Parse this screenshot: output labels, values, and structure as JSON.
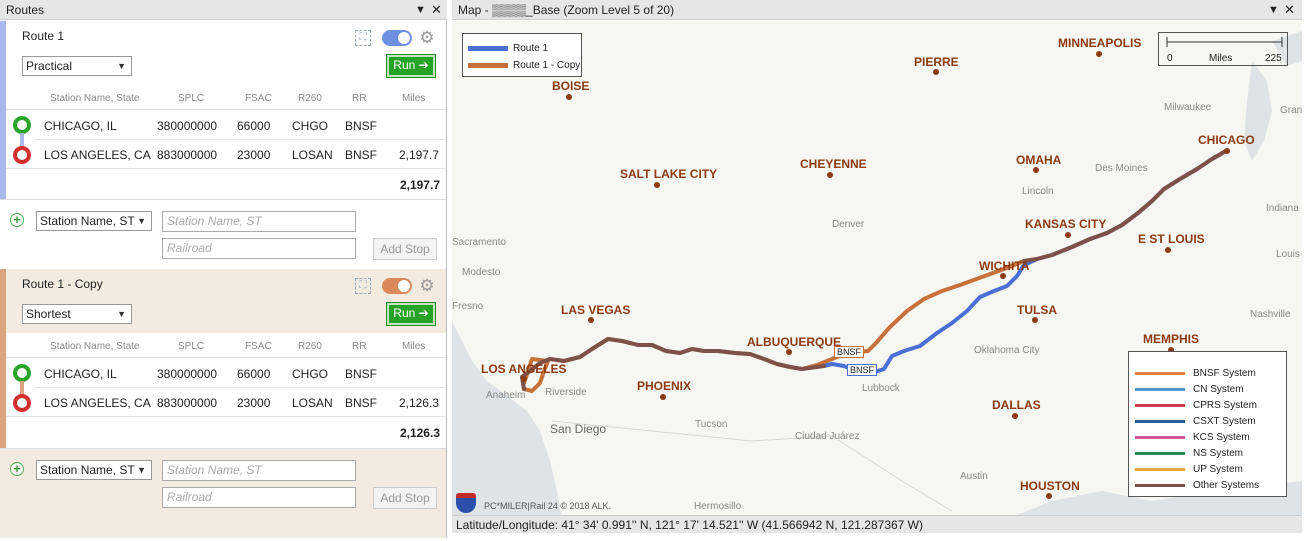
{
  "routes_pane": {
    "title": "Routes",
    "pin": "▼",
    "close": "✕"
  },
  "map_pane": {
    "title": "Map - ▒▒▒▒_Base (Zoom Level 5 of 20)",
    "pin": "▼",
    "close": "✕"
  },
  "columns": [
    "Station Name, State",
    "SPLC",
    "FSAC",
    "R260",
    "RR",
    "Miles"
  ],
  "colors": {
    "route1": "#4a6fd6",
    "route2": "#c8703a",
    "run": "#27a327"
  },
  "route1": {
    "name": "Route 1",
    "type": "Practical",
    "run": "Run ➔",
    "stops": [
      {
        "station": "CHICAGO, IL",
        "splc": "380000000",
        "fsac": "66000",
        "r260": "CHGO",
        "rr": "BNSF",
        "miles": ""
      },
      {
        "station": "LOS ANGELES, CA",
        "splc": "883000000",
        "fsac": "23000",
        "r260": "LOSAN",
        "rr": "BNSF",
        "miles": "2,197.7"
      }
    ],
    "total": "2,197.7"
  },
  "route2": {
    "name": "Route 1 - Copy",
    "type": "Shortest",
    "run": "Run ➔",
    "stops": [
      {
        "station": "CHICAGO, IL",
        "splc": "380000000",
        "fsac": "66000",
        "r260": "CHGO",
        "rr": "BNSF",
        "miles": ""
      },
      {
        "station": "LOS ANGELES, CA",
        "splc": "883000000",
        "fsac": "23000",
        "r260": "LOSAN",
        "rr": "BNSF",
        "miles": "2,126.3"
      }
    ],
    "total": "2,126.3"
  },
  "add_stop": {
    "type": "Station Name, ST",
    "station_placeholder": "Station Name, ST",
    "railroad_placeholder": "Railroad",
    "button": "Add Stop"
  },
  "map": {
    "route_legend": [
      "Route 1",
      "Route 1 - Copy"
    ],
    "scale": {
      "start": "0",
      "unit": "Miles",
      "end": "225"
    },
    "major_cities": [
      {
        "key": "minneapolis",
        "label": "MINNEAPOLIS"
      },
      {
        "key": "pierre",
        "label": "PIERRE"
      },
      {
        "key": "boise",
        "label": "BOISE"
      },
      {
        "key": "chicago",
        "label": "CHICAGO"
      },
      {
        "key": "omaha",
        "label": "OMAHA"
      },
      {
        "key": "cheyenne",
        "label": "CHEYENNE"
      },
      {
        "key": "saltlake",
        "label": "SALT LAKE CITY"
      },
      {
        "key": "kansascity",
        "label": "KANSAS CITY"
      },
      {
        "key": "estlouis",
        "label": "E ST LOUIS"
      },
      {
        "key": "wichita",
        "label": "WICHITA"
      },
      {
        "key": "lasvegas",
        "label": "LAS VEGAS"
      },
      {
        "key": "tulsa",
        "label": "TULSA"
      },
      {
        "key": "memphis",
        "label": "MEMPHIS"
      },
      {
        "key": "albuquerque",
        "label": "ALBUQUERQUE"
      },
      {
        "key": "losangeles",
        "label": "LOS ANGELES"
      },
      {
        "key": "phoenix",
        "label": "PHOENIX"
      },
      {
        "key": "dallas",
        "label": "DALLAS"
      },
      {
        "key": "houston",
        "label": "HOUSTON"
      }
    ],
    "minor_cities": [
      {
        "key": "milwaukee",
        "label": "Milwaukee"
      },
      {
        "key": "grand",
        "label": "Gran"
      },
      {
        "key": "desmoines",
        "label": "Des Moines"
      },
      {
        "key": "lincoln",
        "label": "Lincoln"
      },
      {
        "key": "indiana",
        "label": "Indiana"
      },
      {
        "key": "denver",
        "label": "Denver"
      },
      {
        "key": "sacramento",
        "label": "Sacramento"
      },
      {
        "key": "louis",
        "label": "Louis"
      },
      {
        "key": "modesto",
        "label": "Modesto"
      },
      {
        "key": "fresno",
        "label": "Fresno"
      },
      {
        "key": "nashville",
        "label": "Nashville"
      },
      {
        "key": "oklahoma",
        "label": "Oklahoma City"
      },
      {
        "key": "lubbock",
        "label": "Lubbock"
      },
      {
        "key": "anaheim",
        "label": "Anaheim"
      },
      {
        "key": "riverside",
        "label": "Riverside"
      },
      {
        "key": "sandiego",
        "label": "San Diego"
      },
      {
        "key": "tucson",
        "label": "Tucson"
      },
      {
        "key": "juarez",
        "label": "Ciudad Juárez"
      },
      {
        "key": "austin",
        "label": "Austin"
      },
      {
        "key": "hermosillo",
        "label": "Hermosillo"
      }
    ],
    "rr_labels": [
      "BNSF",
      "BNSF"
    ],
    "system_legend": [
      {
        "name": "BNSF System",
        "color": "#e3813e"
      },
      {
        "name": "CN System",
        "color": "#4f93cf"
      },
      {
        "name": "CPRS System",
        "color": "#c8404a"
      },
      {
        "name": "CSXT System",
        "color": "#2e5a9e"
      },
      {
        "name": "KCS System",
        "color": "#d05a9c"
      },
      {
        "name": "NS System",
        "color": "#2e8a4e"
      },
      {
        "name": "UP System",
        "color": "#e8a640"
      },
      {
        "name": "Other Systems",
        "color": "#7d5048"
      }
    ],
    "branding": "PC*MILER|Rail 24   © 2018 ALK."
  },
  "status": "Latitude/Longitude: 41° 34' 0.991'' N, 121° 17' 14.521'' W (41.566942 N, 121.287367 W)"
}
